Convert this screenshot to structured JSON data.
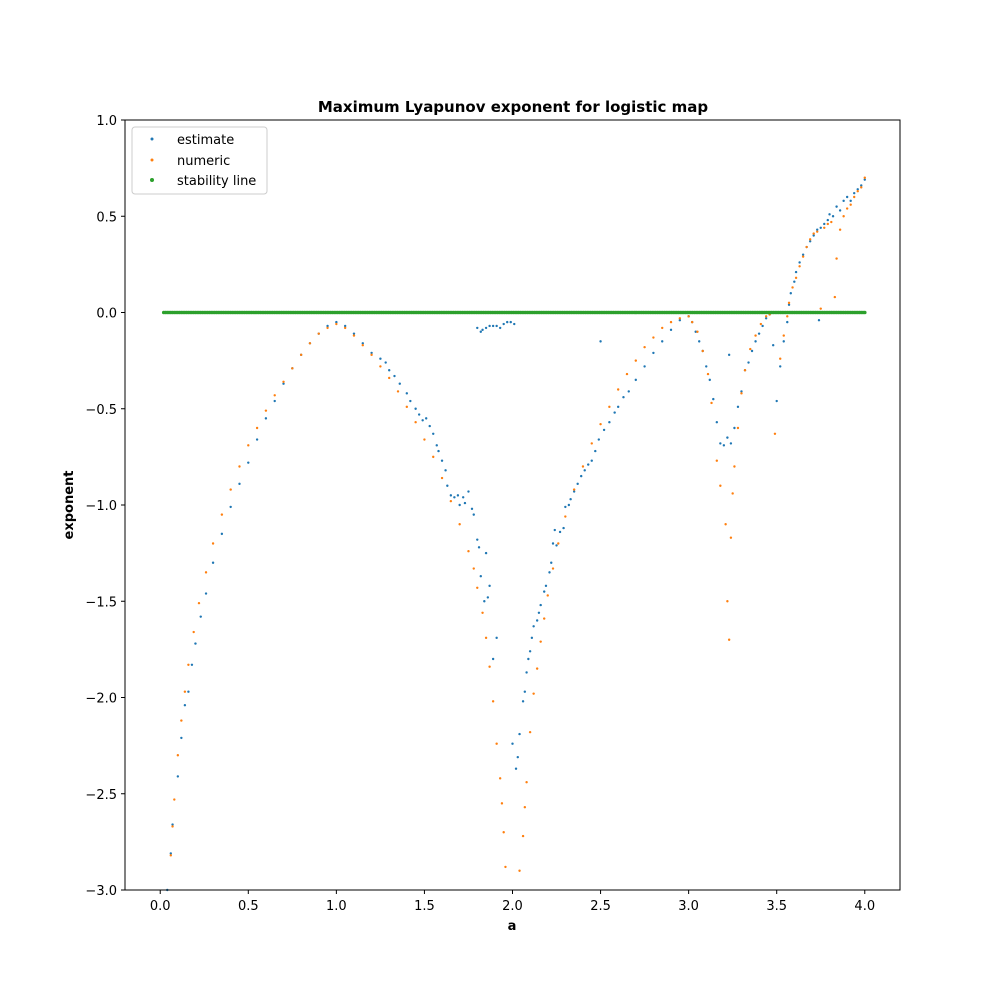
{
  "chart_data": {
    "type": "scatter",
    "title": "Maximum Lyapunov exponent for logistic map",
    "xlabel": "a",
    "ylabel": "exponent",
    "xlim": [
      -0.2,
      4.2
    ],
    "ylim": [
      -3.0,
      1.0
    ],
    "xticks": [
      0.0,
      0.5,
      1.0,
      1.5,
      2.0,
      2.5,
      3.0,
      3.5,
      4.0
    ],
    "xtick_labels": [
      "0.0",
      "0.5",
      "1.0",
      "1.5",
      "2.0",
      "2.5",
      "3.0",
      "3.5",
      "4.0"
    ],
    "yticks": [
      1.0,
      0.5,
      0.0,
      -0.5,
      -1.0,
      -1.5,
      -2.0,
      -2.5,
      -3.0
    ],
    "ytick_labels": [
      "1.0",
      "0.5",
      "0.0",
      "−0.5",
      "−1.0",
      "−1.5",
      "−2.0",
      "−2.5",
      "−3.0"
    ],
    "grid": false,
    "legend_position": "top-left",
    "series": [
      {
        "name": "estimate",
        "color": "#1f77b4",
        "points": [
          [
            0.04,
            -3.0
          ],
          [
            0.06,
            -2.81
          ],
          [
            0.07,
            -2.66
          ],
          [
            0.1,
            -2.41
          ],
          [
            0.12,
            -2.21
          ],
          [
            0.14,
            -2.04
          ],
          [
            0.16,
            -1.97
          ],
          [
            0.18,
            -1.83
          ],
          [
            0.2,
            -1.72
          ],
          [
            0.23,
            -1.58
          ],
          [
            0.26,
            -1.46
          ],
          [
            0.3,
            -1.3
          ],
          [
            0.35,
            -1.15
          ],
          [
            0.4,
            -1.01
          ],
          [
            0.45,
            -0.89
          ],
          [
            0.5,
            -0.78
          ],
          [
            0.55,
            -0.66
          ],
          [
            0.6,
            -0.55
          ],
          [
            0.65,
            -0.46
          ],
          [
            0.7,
            -0.37
          ],
          [
            0.75,
            -0.29
          ],
          [
            0.8,
            -0.22
          ],
          [
            0.85,
            -0.16
          ],
          [
            0.9,
            -0.11
          ],
          [
            0.95,
            -0.07
          ],
          [
            1.0,
            -0.05
          ],
          [
            1.05,
            -0.07
          ],
          [
            1.1,
            -0.11
          ],
          [
            1.15,
            -0.16
          ],
          [
            1.2,
            -0.21
          ],
          [
            1.25,
            -0.24
          ],
          [
            1.28,
            -0.26
          ],
          [
            1.3,
            -0.3
          ],
          [
            1.33,
            -0.33
          ],
          [
            1.36,
            -0.37
          ],
          [
            1.4,
            -0.42
          ],
          [
            1.42,
            -0.46
          ],
          [
            1.45,
            -0.5
          ],
          [
            1.47,
            -0.53
          ],
          [
            1.49,
            -0.56
          ],
          [
            1.51,
            -0.55
          ],
          [
            1.53,
            -0.59
          ],
          [
            1.55,
            -0.63
          ],
          [
            1.57,
            -0.69
          ],
          [
            1.58,
            -0.72
          ],
          [
            1.6,
            -0.77
          ],
          [
            1.62,
            -0.82
          ],
          [
            1.63,
            -0.9
          ],
          [
            1.65,
            -0.95
          ],
          [
            1.67,
            -0.96
          ],
          [
            1.69,
            -0.95
          ],
          [
            1.7,
            -1.0
          ],
          [
            1.72,
            -0.96
          ],
          [
            1.73,
            -0.99
          ],
          [
            1.75,
            -0.93
          ],
          [
            1.77,
            -1.02
          ],
          [
            1.78,
            -1.05
          ],
          [
            1.8,
            -1.18
          ],
          [
            1.81,
            -1.22
          ],
          [
            1.82,
            -1.37
          ],
          [
            1.84,
            -1.5
          ],
          [
            1.85,
            -1.25
          ],
          [
            1.86,
            -1.48
          ],
          [
            1.87,
            -1.42
          ],
          [
            1.89,
            -1.8
          ],
          [
            1.91,
            -1.69
          ],
          [
            1.8,
            -0.08
          ],
          [
            1.82,
            -0.1
          ],
          [
            1.83,
            -0.09
          ],
          [
            1.85,
            -0.08
          ],
          [
            1.87,
            -0.07
          ],
          [
            1.89,
            -0.07
          ],
          [
            1.91,
            -0.07
          ],
          [
            1.93,
            -0.08
          ],
          [
            1.95,
            -0.06
          ],
          [
            1.97,
            -0.05
          ],
          [
            1.99,
            -0.05
          ],
          [
            2.01,
            -0.06
          ],
          [
            2.0,
            -2.24
          ],
          [
            2.02,
            -2.37
          ],
          [
            2.03,
            -2.31
          ],
          [
            2.04,
            -2.19
          ],
          [
            2.06,
            -2.02
          ],
          [
            2.07,
            -1.97
          ],
          [
            2.08,
            -1.87
          ],
          [
            2.09,
            -1.8
          ],
          [
            2.1,
            -1.76
          ],
          [
            2.11,
            -1.69
          ],
          [
            2.12,
            -1.63
          ],
          [
            2.14,
            -1.6
          ],
          [
            2.15,
            -1.56
          ],
          [
            2.16,
            -1.52
          ],
          [
            2.18,
            -1.45
          ],
          [
            2.19,
            -1.42
          ],
          [
            2.21,
            -1.35
          ],
          [
            2.22,
            -1.3
          ],
          [
            2.23,
            -1.2
          ],
          [
            2.24,
            -1.13
          ],
          [
            2.25,
            -1.21
          ],
          [
            2.27,
            -1.14
          ],
          [
            2.29,
            -1.12
          ],
          [
            2.3,
            -1.01
          ],
          [
            2.32,
            -1.0
          ],
          [
            2.33,
            -0.97
          ],
          [
            2.35,
            -0.93
          ],
          [
            2.37,
            -0.89
          ],
          [
            2.39,
            -0.85
          ],
          [
            2.41,
            -0.82
          ],
          [
            2.43,
            -0.79
          ],
          [
            2.45,
            -0.77
          ],
          [
            2.47,
            -0.72
          ],
          [
            2.49,
            -0.66
          ],
          [
            2.5,
            -0.15
          ],
          [
            2.52,
            -0.61
          ],
          [
            2.55,
            -0.57
          ],
          [
            2.58,
            -0.52
          ],
          [
            2.6,
            -0.49
          ],
          [
            2.63,
            -0.44
          ],
          [
            2.66,
            -0.41
          ],
          [
            2.7,
            -0.35
          ],
          [
            2.75,
            -0.28
          ],
          [
            2.8,
            -0.21
          ],
          [
            2.85,
            -0.15
          ],
          [
            2.9,
            -0.09
          ],
          [
            2.95,
            -0.04
          ],
          [
            3.0,
            -0.02
          ],
          [
            3.02,
            -0.05
          ],
          [
            3.04,
            -0.1
          ],
          [
            3.06,
            -0.15
          ],
          [
            3.08,
            -0.2
          ],
          [
            3.1,
            -0.28
          ],
          [
            3.12,
            -0.35
          ],
          [
            3.14,
            -0.45
          ],
          [
            3.16,
            -0.57
          ],
          [
            3.18,
            -0.68
          ],
          [
            3.2,
            -0.69
          ],
          [
            3.22,
            -0.65
          ],
          [
            3.23,
            -0.22
          ],
          [
            3.24,
            -0.68
          ],
          [
            3.26,
            -0.6
          ],
          [
            3.28,
            -0.49
          ],
          [
            3.3,
            -0.41
          ],
          [
            3.32,
            -0.3
          ],
          [
            3.34,
            -0.26
          ],
          [
            3.36,
            -0.2
          ],
          [
            3.38,
            -0.15
          ],
          [
            3.4,
            -0.11
          ],
          [
            3.42,
            -0.07
          ],
          [
            3.44,
            -0.03
          ],
          [
            3.46,
            -0.01
          ],
          [
            3.48,
            -0.17
          ],
          [
            3.5,
            -0.46
          ],
          [
            3.52,
            -0.28
          ],
          [
            3.54,
            -0.15
          ],
          [
            3.56,
            -0.05
          ],
          [
            3.57,
            0.04
          ],
          [
            3.58,
            0.1
          ],
          [
            3.6,
            0.16
          ],
          [
            3.61,
            0.21
          ],
          [
            3.63,
            0.26
          ],
          [
            3.65,
            0.3
          ],
          [
            3.67,
            0.34
          ],
          [
            3.69,
            0.37
          ],
          [
            3.71,
            0.4
          ],
          [
            3.73,
            0.43
          ],
          [
            3.74,
            -0.04
          ],
          [
            3.75,
            0.44
          ],
          [
            3.77,
            0.46
          ],
          [
            3.79,
            0.48
          ],
          [
            3.8,
            0.51
          ],
          [
            3.82,
            0.5
          ],
          [
            3.84,
            0.55
          ],
          [
            3.86,
            0.53
          ],
          [
            3.88,
            0.58
          ],
          [
            3.9,
            0.6
          ],
          [
            3.92,
            0.58
          ],
          [
            3.94,
            0.62
          ],
          [
            3.96,
            0.64
          ],
          [
            3.98,
            0.66
          ],
          [
            4.0,
            0.69
          ]
        ]
      },
      {
        "name": "numeric",
        "color": "#ff7f0e",
        "points": [
          [
            0.06,
            -2.82
          ],
          [
            0.07,
            -2.67
          ],
          [
            0.08,
            -2.53
          ],
          [
            0.1,
            -2.3
          ],
          [
            0.12,
            -2.12
          ],
          [
            0.14,
            -1.97
          ],
          [
            0.16,
            -1.83
          ],
          [
            0.19,
            -1.66
          ],
          [
            0.22,
            -1.51
          ],
          [
            0.26,
            -1.35
          ],
          [
            0.3,
            -1.2
          ],
          [
            0.35,
            -1.05
          ],
          [
            0.4,
            -0.92
          ],
          [
            0.45,
            -0.8
          ],
          [
            0.5,
            -0.69
          ],
          [
            0.55,
            -0.6
          ],
          [
            0.6,
            -0.51
          ],
          [
            0.65,
            -0.43
          ],
          [
            0.7,
            -0.36
          ],
          [
            0.75,
            -0.29
          ],
          [
            0.8,
            -0.22
          ],
          [
            0.85,
            -0.16
          ],
          [
            0.9,
            -0.11
          ],
          [
            0.95,
            -0.08
          ],
          [
            1.0,
            -0.06
          ],
          [
            1.05,
            -0.08
          ],
          [
            1.1,
            -0.12
          ],
          [
            1.15,
            -0.17
          ],
          [
            1.2,
            -0.22
          ],
          [
            1.25,
            -0.28
          ],
          [
            1.3,
            -0.34
          ],
          [
            1.35,
            -0.41
          ],
          [
            1.4,
            -0.49
          ],
          [
            1.45,
            -0.57
          ],
          [
            1.5,
            -0.66
          ],
          [
            1.55,
            -0.75
          ],
          [
            1.6,
            -0.86
          ],
          [
            1.65,
            -0.98
          ],
          [
            1.7,
            -1.1
          ],
          [
            1.75,
            -1.24
          ],
          [
            1.78,
            -1.33
          ],
          [
            1.8,
            -1.43
          ],
          [
            1.83,
            -1.56
          ],
          [
            1.85,
            -1.69
          ],
          [
            1.87,
            -1.84
          ],
          [
            1.89,
            -2.02
          ],
          [
            1.91,
            -2.24
          ],
          [
            1.93,
            -2.42
          ],
          [
            1.94,
            -2.55
          ],
          [
            1.95,
            -2.7
          ],
          [
            1.96,
            -2.88
          ],
          [
            2.04,
            -2.9
          ],
          [
            2.06,
            -2.72
          ],
          [
            2.07,
            -2.57
          ],
          [
            2.08,
            -2.44
          ],
          [
            2.1,
            -2.18
          ],
          [
            2.12,
            -1.98
          ],
          [
            2.14,
            -1.85
          ],
          [
            2.16,
            -1.71
          ],
          [
            2.18,
            -1.59
          ],
          [
            2.2,
            -1.47
          ],
          [
            2.23,
            -1.33
          ],
          [
            2.26,
            -1.2
          ],
          [
            2.3,
            -1.06
          ],
          [
            2.35,
            -0.92
          ],
          [
            2.4,
            -0.8
          ],
          [
            2.45,
            -0.68
          ],
          [
            2.5,
            -0.58
          ],
          [
            2.55,
            -0.49
          ],
          [
            2.6,
            -0.4
          ],
          [
            2.65,
            -0.32
          ],
          [
            2.7,
            -0.25
          ],
          [
            2.75,
            -0.18
          ],
          [
            2.8,
            -0.13
          ],
          [
            2.85,
            -0.08
          ],
          [
            2.9,
            -0.05
          ],
          [
            2.95,
            -0.03
          ],
          [
            3.0,
            -0.02
          ],
          [
            3.02,
            -0.05
          ],
          [
            3.05,
            -0.1
          ],
          [
            3.08,
            -0.2
          ],
          [
            3.11,
            -0.32
          ],
          [
            3.13,
            -0.47
          ],
          [
            3.16,
            -0.77
          ],
          [
            3.18,
            -0.9
          ],
          [
            3.21,
            -1.1
          ],
          [
            3.22,
            -1.5
          ],
          [
            3.23,
            -1.7
          ],
          [
            3.24,
            -1.17
          ],
          [
            3.25,
            -0.94
          ],
          [
            3.26,
            -0.8
          ],
          [
            3.28,
            -0.6
          ],
          [
            3.3,
            -0.42
          ],
          [
            3.32,
            -0.3
          ],
          [
            3.35,
            -0.19
          ],
          [
            3.38,
            -0.12
          ],
          [
            3.41,
            -0.06
          ],
          [
            3.44,
            -0.02
          ],
          [
            3.46,
            -0.01
          ],
          [
            3.49,
            -0.63
          ],
          [
            3.52,
            -0.24
          ],
          [
            3.54,
            -0.12
          ],
          [
            3.56,
            -0.02
          ],
          [
            3.57,
            0.05
          ],
          [
            3.59,
            0.13
          ],
          [
            3.61,
            0.18
          ],
          [
            3.63,
            0.24
          ],
          [
            3.65,
            0.29
          ],
          [
            3.67,
            0.34
          ],
          [
            3.69,
            0.38
          ],
          [
            3.71,
            0.41
          ],
          [
            3.73,
            0.42
          ],
          [
            3.75,
            0.02
          ],
          [
            3.77,
            0.44
          ],
          [
            3.79,
            0.46
          ],
          [
            3.81,
            0.47
          ],
          [
            3.83,
            0.08
          ],
          [
            3.84,
            0.28
          ],
          [
            3.86,
            0.43
          ],
          [
            3.88,
            0.5
          ],
          [
            3.9,
            0.54
          ],
          [
            3.92,
            0.56
          ],
          [
            3.94,
            0.6
          ],
          [
            3.96,
            0.63
          ],
          [
            3.98,
            0.65
          ],
          [
            4.0,
            0.7
          ]
        ]
      },
      {
        "name": "stability line",
        "color": "#2ca02c",
        "points": [
          [
            0.02,
            0.0
          ],
          [
            4.0,
            0.0
          ]
        ]
      }
    ]
  }
}
